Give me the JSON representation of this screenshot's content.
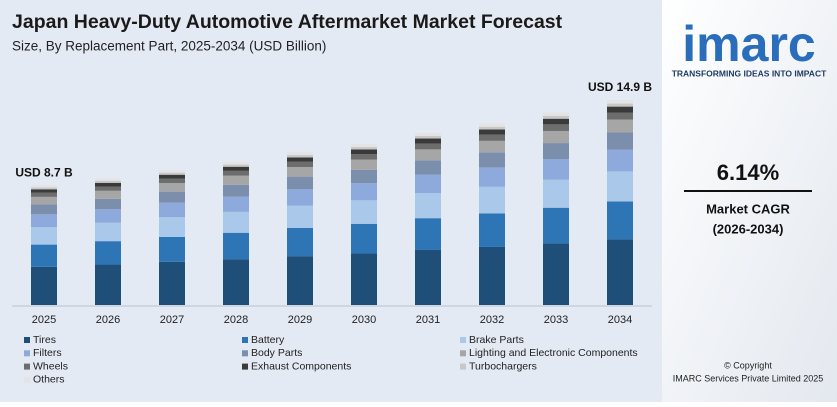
{
  "chart_data": {
    "type": "stacked_bar",
    "title": "Japan Heavy-Duty Automotive Aftermarket Market Forecast",
    "subtitle": "Size, By Replacement Part, 2025-2034 (USD Billion)",
    "categories": [
      "2025",
      "2026",
      "2027",
      "2028",
      "2029",
      "2030",
      "2031",
      "2032",
      "2033",
      "2034"
    ],
    "series": [
      {
        "name": "Tires",
        "color": "#1f4e79",
        "values": [
          2.78,
          2.94,
          3.14,
          3.33,
          3.55,
          3.74,
          4.0,
          4.22,
          4.48,
          4.77
        ]
      },
      {
        "name": "Battery",
        "color": "#2e75b6",
        "values": [
          1.61,
          1.7,
          1.81,
          1.92,
          2.05,
          2.16,
          2.31,
          2.44,
          2.59,
          2.76
        ]
      },
      {
        "name": "Brake Parts",
        "color": "#a9c8ea",
        "values": [
          1.27,
          1.34,
          1.43,
          1.52,
          1.62,
          1.71,
          1.83,
          1.93,
          2.04,
          2.18
        ]
      },
      {
        "name": "Filters",
        "color": "#8ea9db",
        "values": [
          0.93,
          0.98,
          1.05,
          1.11,
          1.19,
          1.25,
          1.34,
          1.41,
          1.5,
          1.59
        ]
      },
      {
        "name": "Body Parts",
        "color": "#7b8fad",
        "values": [
          0.72,
          0.76,
          0.81,
          0.86,
          0.92,
          0.97,
          1.04,
          1.1,
          1.16,
          1.24
        ]
      },
      {
        "name": "Lighting and Electronic Components",
        "color": "#a6a6a6",
        "values": [
          0.55,
          0.58,
          0.62,
          0.66,
          0.7,
          0.74,
          0.79,
          0.83,
          0.88,
          0.94
        ]
      },
      {
        "name": "Wheels",
        "color": "#6d6d6d",
        "values": [
          0.3,
          0.31,
          0.33,
          0.35,
          0.38,
          0.4,
          0.43,
          0.45,
          0.48,
          0.51
        ]
      },
      {
        "name": "Exhaust Components",
        "color": "#3a3a3a",
        "values": [
          0.25,
          0.27,
          0.28,
          0.3,
          0.32,
          0.34,
          0.36,
          0.38,
          0.41,
          0.43
        ]
      },
      {
        "name": "Turbochargers",
        "color": "#c8c8c8",
        "values": [
          0.13,
          0.14,
          0.15,
          0.16,
          0.17,
          0.18,
          0.19,
          0.2,
          0.21,
          0.22
        ]
      },
      {
        "name": "Others",
        "color": "#e4e4e4",
        "values": [
          0.16,
          0.17,
          0.18,
          0.19,
          0.2,
          0.21,
          0.21,
          0.24,
          0.25,
          0.26
        ]
      }
    ],
    "annotations": [
      {
        "category": "2025",
        "value": 8.7,
        "label": "USD 8.7 B"
      },
      {
        "category": "2034",
        "value": 14.9,
        "label": "USD 14.9 B"
      }
    ]
  },
  "sidebar": {
    "logo": "imarc",
    "tagline": "TRANSFORMING IDEAS INTO IMPACT",
    "cagr": "6.14%",
    "cagr_label": "Market CAGR",
    "cagr_period": "(2026-2034)",
    "copyright": "© Copyright",
    "company": "IMARC Services Private Limited 2025"
  }
}
